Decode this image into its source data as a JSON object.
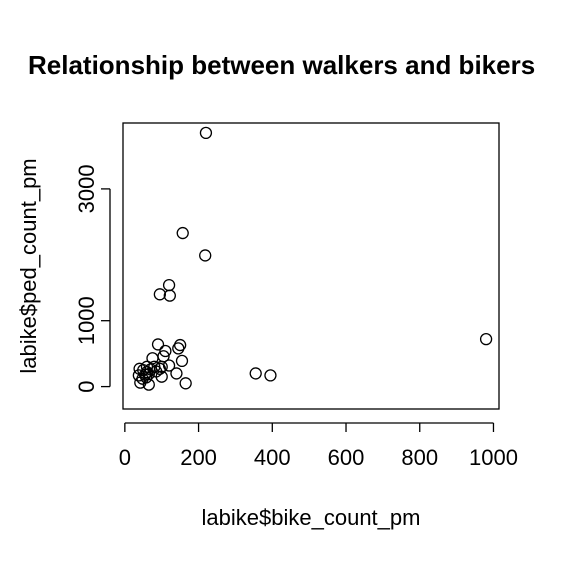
{
  "chart_data": {
    "type": "scatter",
    "title": "Relationship between walkers and bikers",
    "xlabel": "labike$bike_count_pm",
    "ylabel": "labike$ped_count_pm",
    "xlim": [
      -5,
      1015
    ],
    "ylim": [
      -340,
      4000
    ],
    "xticks": [
      0,
      200,
      400,
      600,
      800,
      1000
    ],
    "yticks": [
      0,
      1000,
      3000
    ],
    "marker": "open-circle",
    "grid": false,
    "legend": "none",
    "points": [
      {
        "x": 220,
        "y": 3850
      },
      {
        "x": 157,
        "y": 2330
      },
      {
        "x": 218,
        "y": 1990
      },
      {
        "x": 120,
        "y": 1540
      },
      {
        "x": 95,
        "y": 1400
      },
      {
        "x": 122,
        "y": 1380
      },
      {
        "x": 980,
        "y": 720
      },
      {
        "x": 90,
        "y": 640
      },
      {
        "x": 150,
        "y": 630
      },
      {
        "x": 145,
        "y": 580
      },
      {
        "x": 110,
        "y": 540
      },
      {
        "x": 105,
        "y": 460
      },
      {
        "x": 75,
        "y": 430
      },
      {
        "x": 155,
        "y": 390
      },
      {
        "x": 60,
        "y": 300
      },
      {
        "x": 80,
        "y": 300
      },
      {
        "x": 100,
        "y": 300
      },
      {
        "x": 120,
        "y": 320
      },
      {
        "x": 40,
        "y": 270
      },
      {
        "x": 50,
        "y": 250
      },
      {
        "x": 70,
        "y": 260
      },
      {
        "x": 95,
        "y": 270
      },
      {
        "x": 60,
        "y": 220
      },
      {
        "x": 85,
        "y": 230
      },
      {
        "x": 140,
        "y": 200
      },
      {
        "x": 355,
        "y": 200
      },
      {
        "x": 395,
        "y": 170
      },
      {
        "x": 38,
        "y": 170
      },
      {
        "x": 55,
        "y": 180
      },
      {
        "x": 65,
        "y": 190
      },
      {
        "x": 100,
        "y": 150
      },
      {
        "x": 48,
        "y": 120
      },
      {
        "x": 58,
        "y": 140
      },
      {
        "x": 42,
        "y": 60
      },
      {
        "x": 165,
        "y": 50
      },
      {
        "x": 65,
        "y": 30
      }
    ]
  }
}
